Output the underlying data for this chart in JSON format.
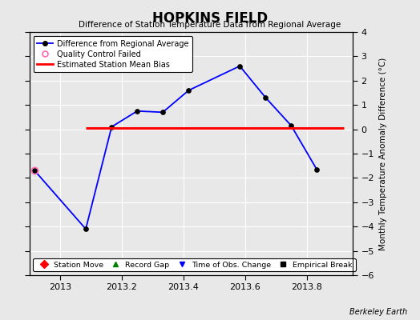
{
  "title": "HOPKINS FIELD",
  "subtitle": "Difference of Station Temperature Data from Regional Average",
  "ylabel_right": "Monthly Temperature Anomaly Difference (°C)",
  "watermark": "Berkeley Earth",
  "xlim": [
    2012.9,
    2013.95
  ],
  "ylim": [
    -6,
    4
  ],
  "yticks": [
    -6,
    -5,
    -4,
    -3,
    -2,
    -1,
    0,
    1,
    2,
    3,
    4
  ],
  "xticks": [
    2013.0,
    2013.2,
    2013.4,
    2013.6,
    2013.8
  ],
  "xtick_labels": [
    "2013",
    "2013.2",
    "2013.4",
    "2013.6",
    "2013.8"
  ],
  "line_x": [
    2012.917,
    2013.083,
    2013.167,
    2013.25,
    2013.333,
    2013.417,
    2013.583,
    2013.667,
    2013.75,
    2013.833
  ],
  "line_y": [
    -1.7,
    -4.1,
    0.1,
    0.75,
    0.7,
    1.6,
    2.6,
    1.3,
    0.15,
    -1.65
  ],
  "line_color": "#0000FF",
  "line_width": 1.3,
  "marker_color": "#000000",
  "marker_size": 4,
  "bias_y": 0.05,
  "bias_x_start": 2013.083,
  "bias_x_end": 2013.92,
  "bias_color": "#FF0000",
  "bias_linewidth": 2.2,
  "qc_fail_x": [
    2012.917
  ],
  "qc_fail_y": [
    -1.7
  ],
  "qc_color": "#FF69B4",
  "background_color": "#E8E8E8",
  "grid_color": "#FFFFFF",
  "legend1_labels": [
    "Difference from Regional Average",
    "Quality Control Failed",
    "Estimated Station Mean Bias"
  ],
  "legend2_labels": [
    "Station Move",
    "Record Gap",
    "Time of Obs. Change",
    "Empirical Break"
  ]
}
